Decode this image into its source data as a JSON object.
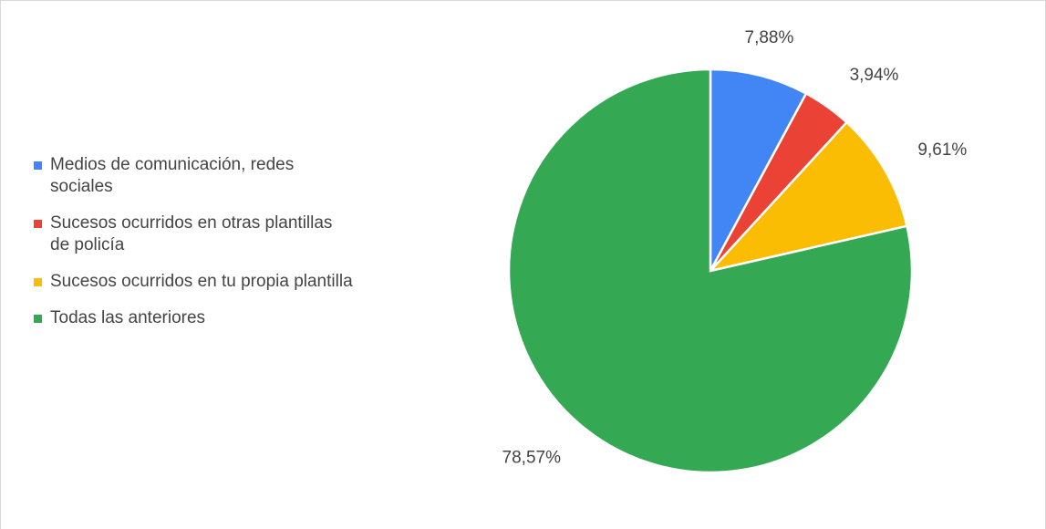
{
  "chart_data": {
    "type": "pie",
    "categories": [
      "Medios de comunicación, redes sociales",
      "Sucesos ocurridos en otras plantillas de policía",
      "Sucesos ocurridos en tu propia plantilla",
      "Todas las anteriores"
    ],
    "values": [
      7.88,
      3.94,
      9.61,
      78.57
    ],
    "value_labels": [
      "7,88%",
      "3,94%",
      "9,61%",
      "78,57%"
    ],
    "colors": [
      "#4285f4",
      "#ea4335",
      "#fbbc04",
      "#34a853"
    ],
    "legend": "left"
  }
}
